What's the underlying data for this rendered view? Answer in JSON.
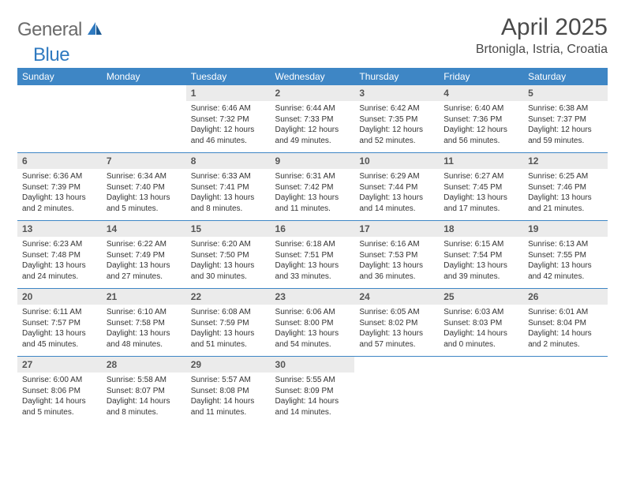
{
  "logo": {
    "general": "General",
    "blue": "Blue"
  },
  "title": "April 2025",
  "location": "Brtonigla, Istria, Croatia",
  "colors": {
    "header_bg": "#3e86c5",
    "header_text": "#ffffff",
    "daynum_bg": "#ebebeb",
    "body_text": "#333333",
    "logo_gray": "#6b6b6b",
    "logo_blue": "#2f7ac0"
  },
  "typography": {
    "title_fontsize": 30,
    "location_fontsize": 16,
    "dayheader_fontsize": 12,
    "daynum_fontsize": 12,
    "body_fontsize": 10
  },
  "day_headers": [
    "Sunday",
    "Monday",
    "Tuesday",
    "Wednesday",
    "Thursday",
    "Friday",
    "Saturday"
  ],
  "weeks": [
    [
      null,
      null,
      {
        "n": "1",
        "sunrise": "Sunrise: 6:46 AM",
        "sunset": "Sunset: 7:32 PM",
        "daylight": "Daylight: 12 hours and 46 minutes."
      },
      {
        "n": "2",
        "sunrise": "Sunrise: 6:44 AM",
        "sunset": "Sunset: 7:33 PM",
        "daylight": "Daylight: 12 hours and 49 minutes."
      },
      {
        "n": "3",
        "sunrise": "Sunrise: 6:42 AM",
        "sunset": "Sunset: 7:35 PM",
        "daylight": "Daylight: 12 hours and 52 minutes."
      },
      {
        "n": "4",
        "sunrise": "Sunrise: 6:40 AM",
        "sunset": "Sunset: 7:36 PM",
        "daylight": "Daylight: 12 hours and 56 minutes."
      },
      {
        "n": "5",
        "sunrise": "Sunrise: 6:38 AM",
        "sunset": "Sunset: 7:37 PM",
        "daylight": "Daylight: 12 hours and 59 minutes."
      }
    ],
    [
      {
        "n": "6",
        "sunrise": "Sunrise: 6:36 AM",
        "sunset": "Sunset: 7:39 PM",
        "daylight": "Daylight: 13 hours and 2 minutes."
      },
      {
        "n": "7",
        "sunrise": "Sunrise: 6:34 AM",
        "sunset": "Sunset: 7:40 PM",
        "daylight": "Daylight: 13 hours and 5 minutes."
      },
      {
        "n": "8",
        "sunrise": "Sunrise: 6:33 AM",
        "sunset": "Sunset: 7:41 PM",
        "daylight": "Daylight: 13 hours and 8 minutes."
      },
      {
        "n": "9",
        "sunrise": "Sunrise: 6:31 AM",
        "sunset": "Sunset: 7:42 PM",
        "daylight": "Daylight: 13 hours and 11 minutes."
      },
      {
        "n": "10",
        "sunrise": "Sunrise: 6:29 AM",
        "sunset": "Sunset: 7:44 PM",
        "daylight": "Daylight: 13 hours and 14 minutes."
      },
      {
        "n": "11",
        "sunrise": "Sunrise: 6:27 AM",
        "sunset": "Sunset: 7:45 PM",
        "daylight": "Daylight: 13 hours and 17 minutes."
      },
      {
        "n": "12",
        "sunrise": "Sunrise: 6:25 AM",
        "sunset": "Sunset: 7:46 PM",
        "daylight": "Daylight: 13 hours and 21 minutes."
      }
    ],
    [
      {
        "n": "13",
        "sunrise": "Sunrise: 6:23 AM",
        "sunset": "Sunset: 7:48 PM",
        "daylight": "Daylight: 13 hours and 24 minutes."
      },
      {
        "n": "14",
        "sunrise": "Sunrise: 6:22 AM",
        "sunset": "Sunset: 7:49 PM",
        "daylight": "Daylight: 13 hours and 27 minutes."
      },
      {
        "n": "15",
        "sunrise": "Sunrise: 6:20 AM",
        "sunset": "Sunset: 7:50 PM",
        "daylight": "Daylight: 13 hours and 30 minutes."
      },
      {
        "n": "16",
        "sunrise": "Sunrise: 6:18 AM",
        "sunset": "Sunset: 7:51 PM",
        "daylight": "Daylight: 13 hours and 33 minutes."
      },
      {
        "n": "17",
        "sunrise": "Sunrise: 6:16 AM",
        "sunset": "Sunset: 7:53 PM",
        "daylight": "Daylight: 13 hours and 36 minutes."
      },
      {
        "n": "18",
        "sunrise": "Sunrise: 6:15 AM",
        "sunset": "Sunset: 7:54 PM",
        "daylight": "Daylight: 13 hours and 39 minutes."
      },
      {
        "n": "19",
        "sunrise": "Sunrise: 6:13 AM",
        "sunset": "Sunset: 7:55 PM",
        "daylight": "Daylight: 13 hours and 42 minutes."
      }
    ],
    [
      {
        "n": "20",
        "sunrise": "Sunrise: 6:11 AM",
        "sunset": "Sunset: 7:57 PM",
        "daylight": "Daylight: 13 hours and 45 minutes."
      },
      {
        "n": "21",
        "sunrise": "Sunrise: 6:10 AM",
        "sunset": "Sunset: 7:58 PM",
        "daylight": "Daylight: 13 hours and 48 minutes."
      },
      {
        "n": "22",
        "sunrise": "Sunrise: 6:08 AM",
        "sunset": "Sunset: 7:59 PM",
        "daylight": "Daylight: 13 hours and 51 minutes."
      },
      {
        "n": "23",
        "sunrise": "Sunrise: 6:06 AM",
        "sunset": "Sunset: 8:00 PM",
        "daylight": "Daylight: 13 hours and 54 minutes."
      },
      {
        "n": "24",
        "sunrise": "Sunrise: 6:05 AM",
        "sunset": "Sunset: 8:02 PM",
        "daylight": "Daylight: 13 hours and 57 minutes."
      },
      {
        "n": "25",
        "sunrise": "Sunrise: 6:03 AM",
        "sunset": "Sunset: 8:03 PM",
        "daylight": "Daylight: 14 hours and 0 minutes."
      },
      {
        "n": "26",
        "sunrise": "Sunrise: 6:01 AM",
        "sunset": "Sunset: 8:04 PM",
        "daylight": "Daylight: 14 hours and 2 minutes."
      }
    ],
    [
      {
        "n": "27",
        "sunrise": "Sunrise: 6:00 AM",
        "sunset": "Sunset: 8:06 PM",
        "daylight": "Daylight: 14 hours and 5 minutes."
      },
      {
        "n": "28",
        "sunrise": "Sunrise: 5:58 AM",
        "sunset": "Sunset: 8:07 PM",
        "daylight": "Daylight: 14 hours and 8 minutes."
      },
      {
        "n": "29",
        "sunrise": "Sunrise: 5:57 AM",
        "sunset": "Sunset: 8:08 PM",
        "daylight": "Daylight: 14 hours and 11 minutes."
      },
      {
        "n": "30",
        "sunrise": "Sunrise: 5:55 AM",
        "sunset": "Sunset: 8:09 PM",
        "daylight": "Daylight: 14 hours and 14 minutes."
      },
      null,
      null,
      null
    ]
  ]
}
